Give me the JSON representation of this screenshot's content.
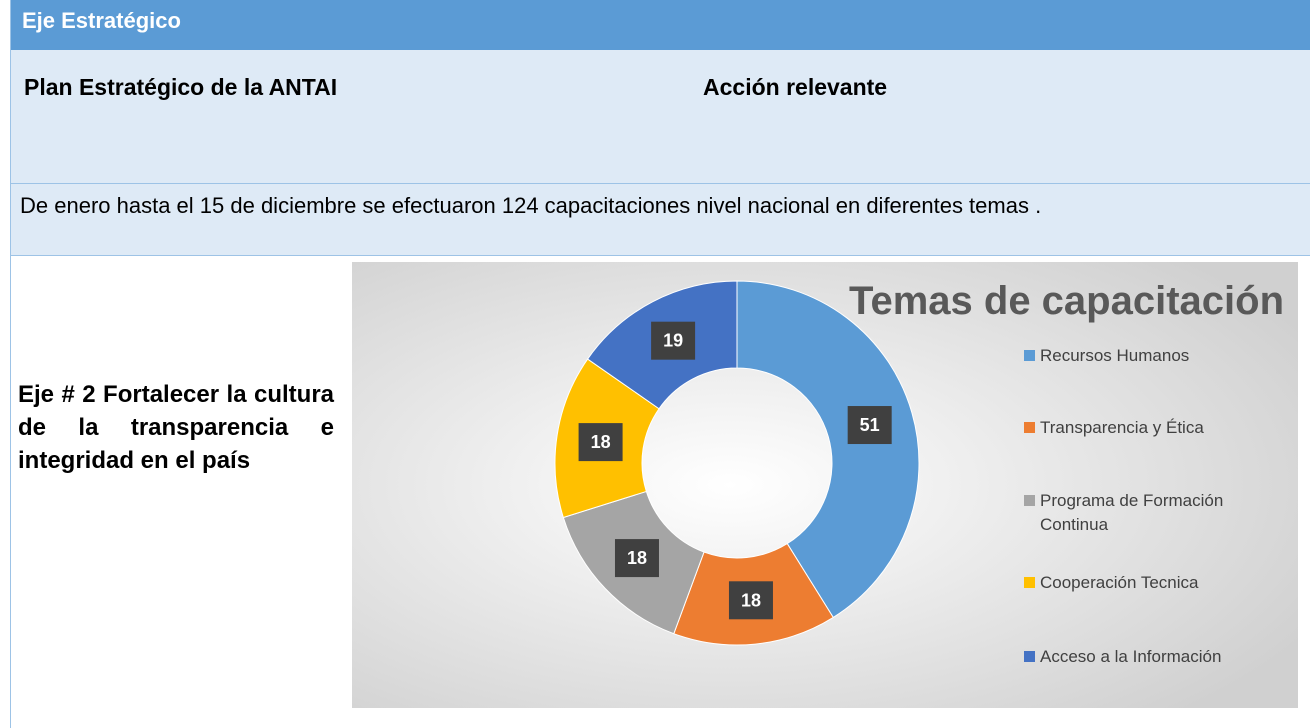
{
  "header": {
    "title": "Eje Estratégico"
  },
  "columns": {
    "plan": "Plan Estratégico de la ANTAI",
    "accion": "Acción relevante"
  },
  "summary": "De enero hasta el 15 de diciembre se efectuaron 124 capacitaciones nivel nacional en diferentes temas .",
  "eje": "Eje # 2 Fortalecer la cultura de la transparencia e integridad en el país",
  "chart_data": {
    "type": "doughnut",
    "title": "Temas de capacitación",
    "categories": [
      "Recursos Humanos",
      "Transparencia y Ética",
      "Programa de Formación Continua",
      "Cooperación Tecnica",
      "Acceso a la Información"
    ],
    "values": [
      51,
      18,
      18,
      18,
      19
    ],
    "colors": [
      "#5b9bd5",
      "#ed7d31",
      "#a5a5a5",
      "#ffc000",
      "#4472c4"
    ],
    "legend": "right"
  }
}
